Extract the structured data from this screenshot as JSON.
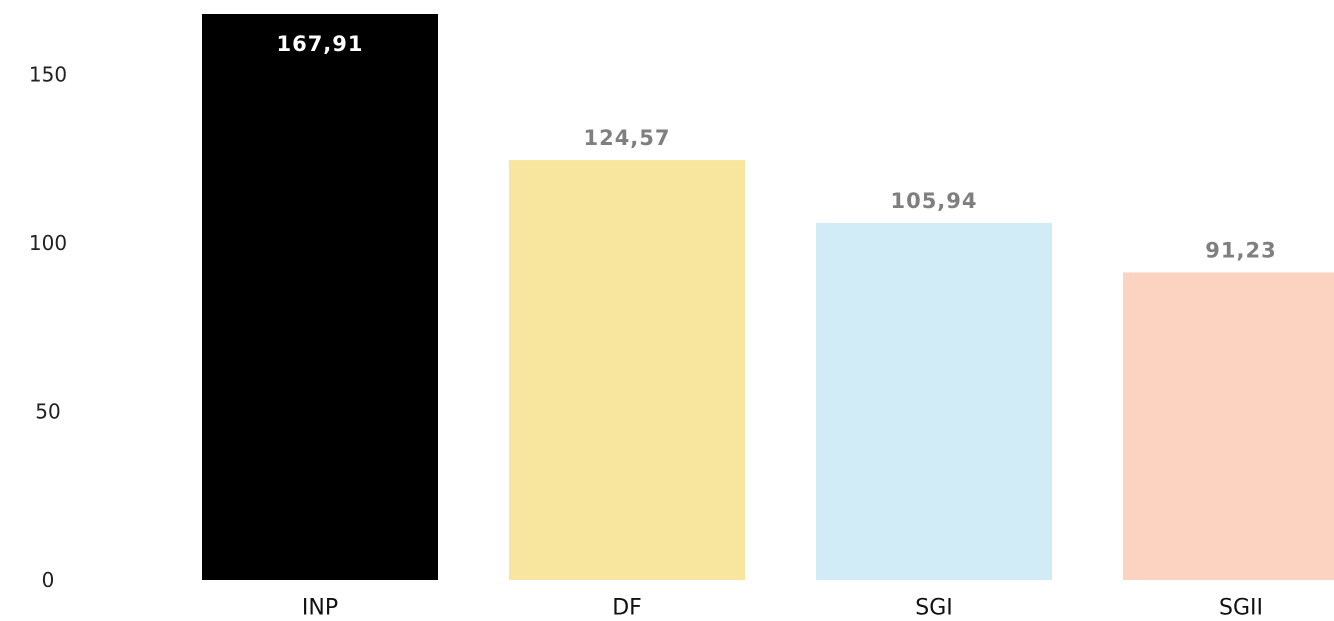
{
  "chart_data": {
    "type": "bar",
    "categories": [
      "INP",
      "DF",
      "SGI",
      "SGII"
    ],
    "values": [
      167.91,
      124.57,
      105.94,
      91.23
    ],
    "data_labels": [
      "167,91",
      "124,57",
      "105,94",
      "91,23"
    ],
    "bar_colors": [
      "#000000",
      "#f8e69e",
      "#d2ecf7",
      "#fcd3c1"
    ],
    "label_colors": [
      "#ffffff",
      "#7f7f7f",
      "#7f7f7f",
      "#7f7f7f"
    ],
    "label_positions": [
      "inside",
      "above",
      "above",
      "above"
    ],
    "y_ticks": [
      0,
      50,
      100,
      150
    ],
    "y_tick_labels": [
      "0",
      "50",
      "100",
      "150"
    ],
    "ylim": [
      0,
      167.91
    ],
    "grid": false,
    "legend": "none",
    "title": "",
    "xlabel": "",
    "ylabel": ""
  }
}
